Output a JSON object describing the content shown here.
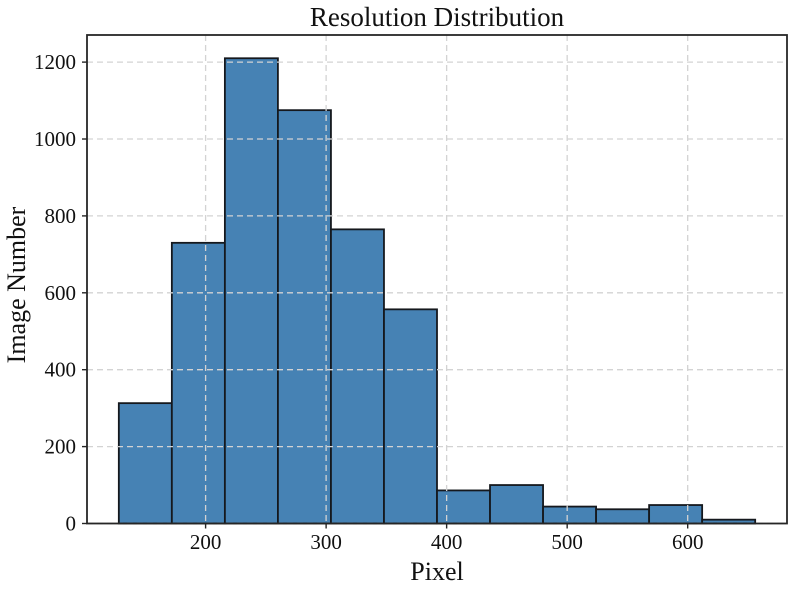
{
  "chart_data": {
    "type": "bar",
    "variant": "histogram",
    "title": "Resolution Distribution",
    "xlabel": "Pixel",
    "ylabel": "Image Number",
    "bin_edges": [
      128,
      172,
      216,
      260,
      304,
      348,
      392,
      436,
      480,
      524,
      568,
      612,
      656
    ],
    "counts": [
      313,
      730,
      1210,
      1075,
      765,
      557,
      86,
      100,
      44,
      37,
      48,
      10
    ],
    "xticks": [
      200,
      300,
      400,
      500,
      600
    ],
    "yticks": [
      0,
      200,
      400,
      600,
      800,
      1000,
      1200
    ],
    "xlim": [
      101.6,
      682.4
    ],
    "ylim": [
      0,
      1270.5
    ],
    "bar_color": "#4682B4",
    "bar_edge_color": "#15181d",
    "grid": {
      "show": true,
      "line_style": "dashed",
      "color": "#d3d3d3",
      "drawn_above_bars": true
    },
    "axis_color": "#262626",
    "text_color": "#111111",
    "legend": "none"
  }
}
